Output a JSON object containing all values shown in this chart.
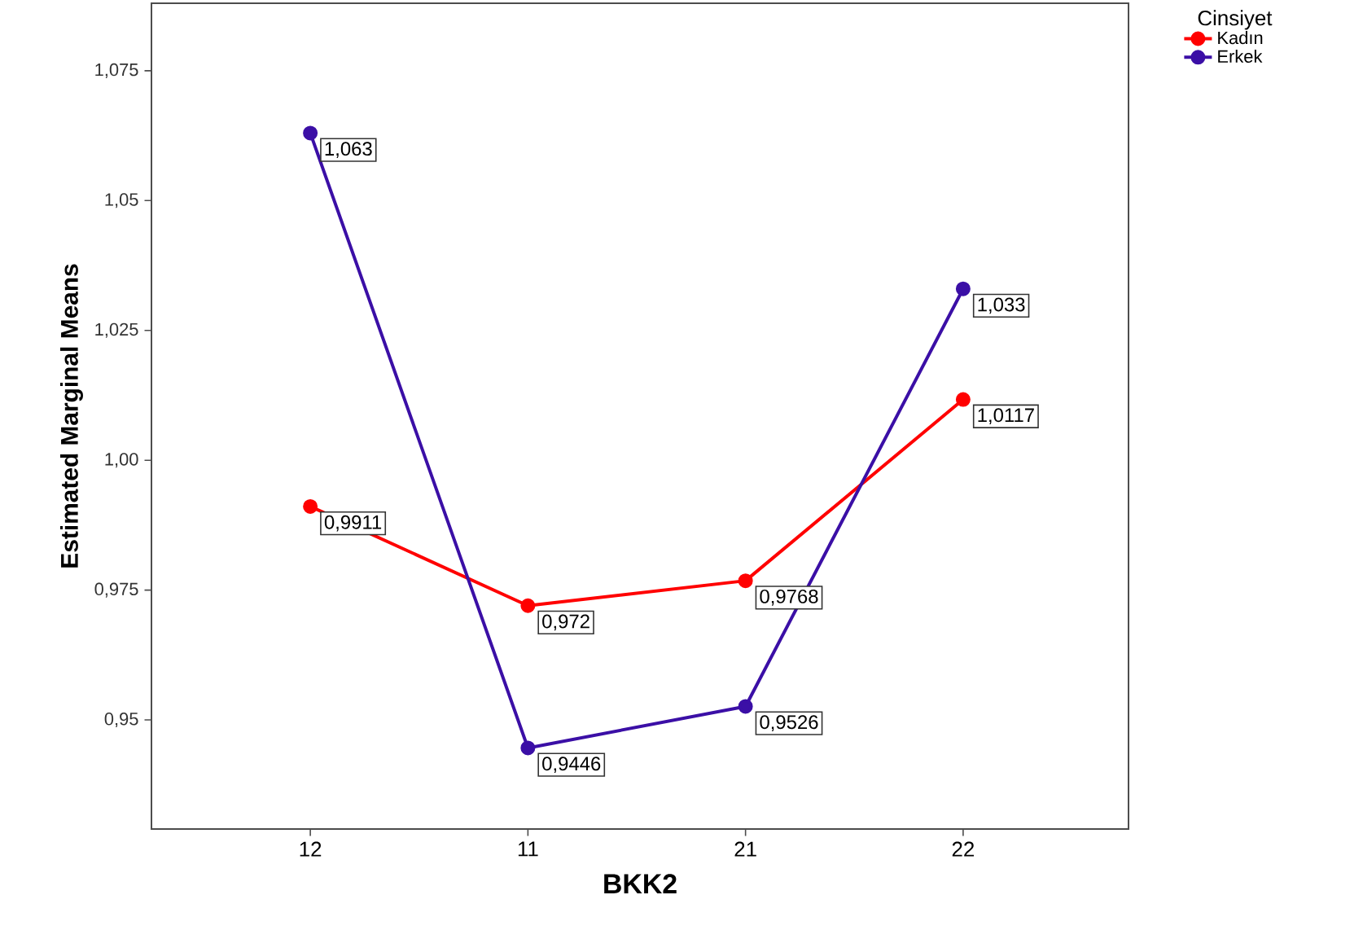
{
  "chart_data": {
    "type": "line",
    "xlabel": "BKK2",
    "ylabel": "Estimated Marginal Means",
    "legend_title": "Cinsiyet",
    "categories": [
      "12",
      "11",
      "21",
      "22"
    ],
    "series": [
      {
        "name": "Kadın",
        "color": "#ff0000",
        "values": [
          0.9911,
          0.972,
          0.9768,
          1.0117
        ],
        "value_labels": [
          "0,9911",
          "0,972",
          "0,9768",
          "1,0117"
        ]
      },
      {
        "name": "Erkek",
        "color": "#3b0fa6",
        "values": [
          1.063,
          0.9446,
          0.9526,
          1.033
        ],
        "value_labels": [
          "1,063",
          "0,9446",
          "0,9526",
          "1,033"
        ]
      }
    ],
    "ylim": [
      0.929,
      1.088
    ],
    "yticks": [
      {
        "value": 0.95,
        "label": "0,95"
      },
      {
        "value": 0.975,
        "label": "0,975"
      },
      {
        "value": 1.0,
        "label": "1,00"
      },
      {
        "value": 1.025,
        "label": "1,025"
      },
      {
        "value": 1.05,
        "label": "1,05"
      },
      {
        "value": 1.075,
        "label": "1,075"
      }
    ],
    "legend": "top right",
    "marker": "circle",
    "line_style": "solid",
    "grid": false
  }
}
